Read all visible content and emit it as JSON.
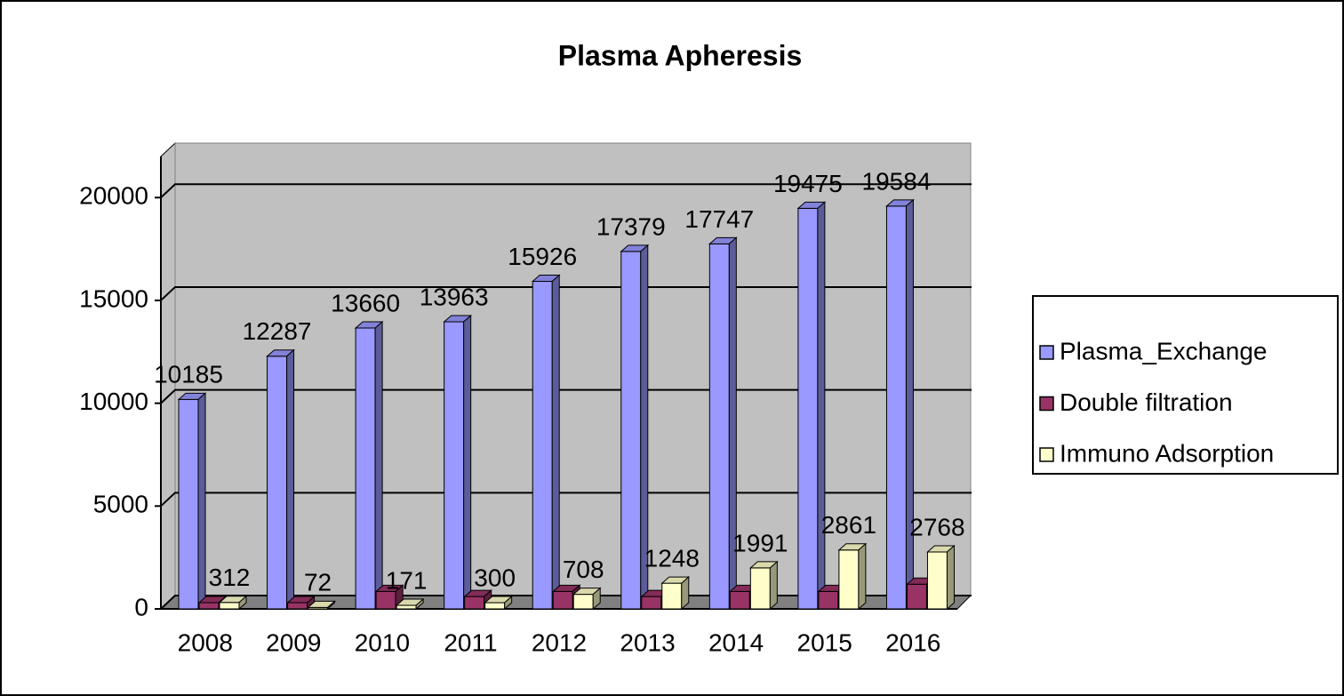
{
  "chart_data": {
    "type": "bar3d",
    "title": "Plasma Apheresis",
    "categories": [
      "2008",
      "2009",
      "2010",
      "2011",
      "2012",
      "2013",
      "2014",
      "2015",
      "2016"
    ],
    "series": [
      {
        "name": "Plasma_Exchange",
        "color": "#9999ff",
        "values": [
          10185,
          12287,
          13660,
          13963,
          15926,
          17379,
          17747,
          19475,
          19584
        ],
        "labels": true
      },
      {
        "name": "Double filtration",
        "color": "#993366",
        "values": [
          300,
          300,
          850,
          600,
          850,
          600,
          850,
          850,
          1200
        ],
        "labels": false
      },
      {
        "name": "Immuno Adsorption",
        "color": "#ffffcc",
        "values": [
          312,
          72,
          171,
          300,
          708,
          1248,
          1991,
          2861,
          2768
        ],
        "labels": true
      }
    ],
    "ylim": [
      0,
      22000
    ],
    "yticks": [
      0,
      5000,
      10000,
      15000,
      20000
    ],
    "grid": true,
    "legend": "right"
  }
}
